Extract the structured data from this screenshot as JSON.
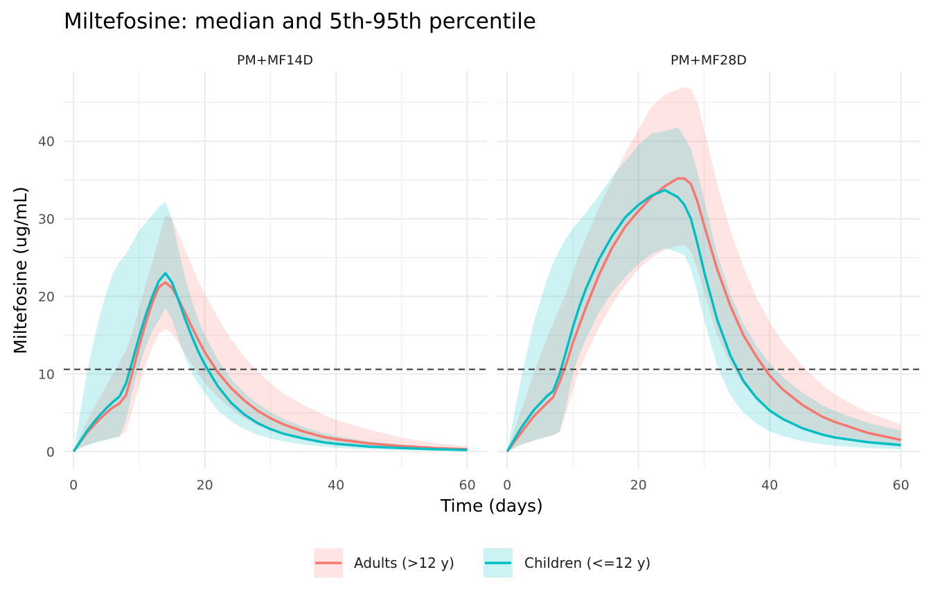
{
  "chart_data": {
    "type": "line",
    "title": "Miltefosine: median and 5th-95th percentile",
    "xlabel": "Time (days)",
    "ylabel": "Miltefosine (ug/mL)",
    "xlim": [
      -1.5,
      63
    ],
    "ylim": [
      -2.2,
      49
    ],
    "x_ticks": [
      0,
      20,
      40,
      60
    ],
    "y_ticks": [
      0,
      10,
      20,
      30,
      40
    ],
    "threshold_y": 10.6,
    "grid": true,
    "legend_position": "bottom",
    "colors": {
      "adults": "#F8766D",
      "children": "#00BFC4",
      "threshold": "#4d4d4d"
    },
    "series": [
      {
        "name": "Adults (>12 y)",
        "key": "adults"
      },
      {
        "name": "Children (<=12 y)",
        "key": "children"
      }
    ],
    "panels": [
      {
        "label": "PM+MF14D",
        "adults": {
          "x": [
            0,
            1,
            2,
            3,
            4,
            5,
            6,
            7,
            8,
            9,
            10,
            11,
            12,
            13,
            14,
            15,
            16,
            17,
            18,
            19,
            20,
            22,
            24,
            26,
            28,
            30,
            32,
            35,
            38,
            40,
            45,
            50,
            55,
            60
          ],
          "median": [
            0,
            1.2,
            2.4,
            3.3,
            4.2,
            5,
            5.7,
            6.2,
            7.3,
            10.3,
            13.6,
            16.6,
            19.2,
            21.2,
            21.8,
            21.1,
            19.6,
            17.9,
            16.1,
            14.4,
            12.8,
            10.2,
            8.2,
            6.6,
            5.3,
            4.3,
            3.5,
            2.6,
            1.9,
            1.6,
            1.05,
            0.7,
            0.45,
            0.3
          ],
          "low": [
            0,
            0.4,
            0.8,
            1.1,
            1.4,
            1.6,
            1.8,
            2,
            2.5,
            5.5,
            8.5,
            11.2,
            13.5,
            15.2,
            15.8,
            15.2,
            14,
            12.6,
            11.3,
            10,
            8.8,
            7,
            5.5,
            4.3,
            3.4,
            2.7,
            2.2,
            1.6,
            1.2,
            1,
            0.6,
            0.4,
            0.25,
            0.15
          ],
          "high": [
            0,
            2,
            3.8,
            5.5,
            7,
            8.5,
            10,
            11.5,
            13,
            15.5,
            18.5,
            21.5,
            24.5,
            27.5,
            30.5,
            30,
            28,
            26,
            24,
            22,
            20.3,
            17.2,
            14.5,
            12.2,
            10.4,
            8.8,
            7.5,
            6,
            4.8,
            4.1,
            2.8,
            1.8,
            1.1,
            0.7
          ]
        },
        "children": {
          "x": [
            0,
            1,
            2,
            3,
            4,
            5,
            6,
            7,
            8,
            9,
            10,
            11,
            12,
            13,
            14,
            15,
            16,
            17,
            18,
            19,
            20,
            22,
            24,
            26,
            28,
            30,
            32,
            35,
            38,
            40,
            45,
            50,
            55,
            60
          ],
          "median": [
            0,
            1.3,
            2.6,
            3.7,
            4.7,
            5.6,
            6.4,
            7.1,
            8.8,
            11.8,
            14.8,
            17.6,
            20,
            22,
            23,
            21.8,
            19.5,
            17.1,
            14.9,
            12.9,
            11.2,
            8.4,
            6.3,
            4.8,
            3.7,
            2.9,
            2.3,
            1.7,
            1.2,
            1,
            0.65,
            0.45,
            0.3,
            0.2
          ],
          "low": [
            0,
            0.5,
            0.8,
            1.1,
            1.3,
            1.5,
            1.7,
            1.9,
            4,
            8,
            11,
            13.5,
            15.5,
            17,
            18.5,
            17,
            14.5,
            12.1,
            10.2,
            8.8,
            7.5,
            5.3,
            3.9,
            2.9,
            2.2,
            1.7,
            1.3,
            0.9,
            0.65,
            0.5,
            0.3,
            0.2,
            0.12,
            0.08
          ],
          "high": [
            0,
            5,
            10,
            14,
            17.5,
            20.5,
            23,
            24.5,
            25.5,
            27,
            28.5,
            29.5,
            30.5,
            31.5,
            32.2,
            30,
            26,
            22.5,
            19.5,
            17,
            15,
            11.8,
            9.4,
            7.6,
            6.2,
            5.1,
            4.2,
            3.2,
            2.4,
            2,
            1.3,
            0.9,
            0.6,
            0.4
          ]
        }
      },
      {
        "label": "PM+MF28D",
        "adults": {
          "x": [
            0,
            2,
            4,
            6,
            7,
            8,
            9,
            10,
            11,
            12,
            14,
            16,
            18,
            20,
            22,
            24,
            26,
            27,
            28,
            29,
            30,
            32,
            34,
            36,
            38,
            40,
            42,
            45,
            48,
            50,
            55,
            60
          ],
          "median": [
            0,
            2.3,
            4.5,
            6.2,
            7,
            9,
            11.3,
            14,
            16.3,
            18.6,
            22.8,
            26.3,
            29,
            31,
            32.8,
            34.2,
            35.2,
            35.2,
            34.5,
            32.2,
            29.2,
            23.5,
            18.8,
            15,
            12.2,
            9.8,
            8,
            6,
            4.5,
            3.8,
            2.4,
            1.5
          ],
          "low": [
            0,
            0.8,
            1.4,
            1.9,
            2.1,
            2.5,
            5,
            8,
            10.5,
            12.5,
            16,
            19,
            21.5,
            23.5,
            25,
            26,
            26.6,
            26.6,
            25.8,
            23.5,
            20.5,
            15,
            11.3,
            8.6,
            6.7,
            5.2,
            4,
            2.9,
            2.1,
            1.7,
            1.05,
            0.65
          ],
          "high": [
            0,
            5,
            10,
            14.5,
            16.5,
            18.5,
            20.5,
            23,
            25.5,
            27.5,
            31.5,
            35,
            38.5,
            41.5,
            44.5,
            46,
            46.7,
            47,
            46.7,
            45,
            41.5,
            34.5,
            28.5,
            23.8,
            19.8,
            16.7,
            14.1,
            11,
            8.6,
            7.3,
            5,
            3.5
          ]
        },
        "children": {
          "x": [
            0,
            2,
            4,
            6,
            7,
            8,
            9,
            10,
            11,
            12,
            14,
            16,
            18,
            20,
            22,
            24,
            26,
            27,
            28,
            29,
            30,
            32,
            34,
            36,
            38,
            40,
            42,
            45,
            48,
            50,
            55,
            60
          ],
          "median": [
            0,
            2.9,
            5.3,
            7.1,
            7.8,
            10,
            13,
            16,
            18.7,
            21,
            24.8,
            27.8,
            30.2,
            31.8,
            33,
            33.7,
            32.8,
            31.8,
            30,
            26.8,
            23.2,
            17,
            12.4,
            9.1,
            6.9,
            5.3,
            4.2,
            3,
            2.2,
            1.8,
            1.2,
            0.85
          ],
          "low": [
            0,
            0.9,
            1.4,
            1.9,
            2.1,
            2.6,
            6,
            10,
            12.5,
            14.5,
            18,
            20.5,
            22.5,
            24.2,
            25.5,
            26.2,
            25.7,
            25.3,
            23.5,
            20.5,
            17,
            11,
            7.3,
            5,
            3.6,
            2.6,
            2,
            1.35,
            0.95,
            0.75,
            0.45,
            0.3
          ],
          "high": [
            0,
            9,
            16.5,
            22,
            24.3,
            26,
            27.5,
            28.8,
            29.8,
            30.8,
            33,
            35.5,
            37.5,
            39.5,
            41,
            41.3,
            41.8,
            40.5,
            39,
            36,
            32.5,
            25.5,
            20.3,
            16.5,
            13.6,
            11.4,
            9.6,
            7.6,
            6,
            5.2,
            3.7,
            2.7
          ]
        }
      }
    ]
  }
}
